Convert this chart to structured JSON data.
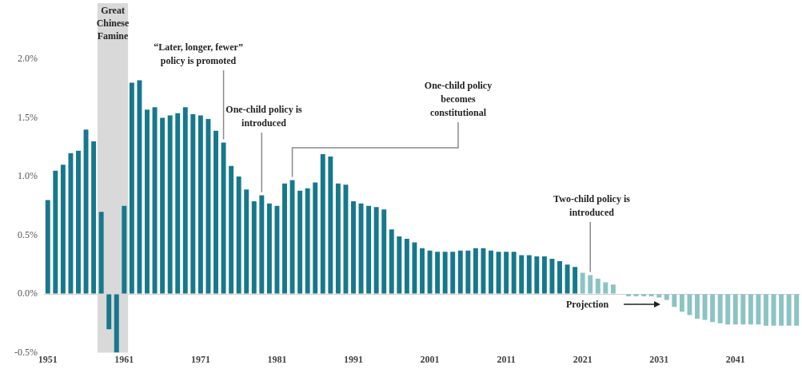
{
  "chart_data": {
    "type": "bar",
    "series": [
      {
        "color": "#17788c",
        "x": [
          1951,
          1952,
          1953,
          1954,
          1955,
          1956,
          1957,
          1958,
          1959,
          1960,
          1961,
          1962,
          1963,
          1964,
          1965,
          1966,
          1967,
          1968,
          1969,
          1970,
          1971,
          1972,
          1973,
          1974,
          1975,
          1976,
          1977,
          1978,
          1979,
          1980,
          1981,
          1982,
          1983,
          1984,
          1985,
          1986,
          1987,
          1988,
          1989,
          1990,
          1991,
          1992,
          1993,
          1994,
          1995,
          1996,
          1997,
          1998,
          1999,
          2000,
          2001,
          2002,
          2003,
          2004,
          2005,
          2006,
          2007,
          2008,
          2009,
          2010,
          2011,
          2012,
          2013,
          2014,
          2015,
          2016,
          2017,
          2018,
          2019,
          2020
        ],
        "values": [
          0.8,
          1.05,
          1.1,
          1.2,
          1.22,
          1.4,
          1.3,
          0.7,
          -0.3,
          -0.5,
          0.75,
          1.8,
          1.82,
          1.57,
          1.59,
          1.5,
          1.52,
          1.54,
          1.59,
          1.53,
          1.52,
          1.49,
          1.39,
          1.29,
          1.09,
          1.0,
          0.89,
          0.79,
          0.84,
          0.77,
          0.75,
          0.94,
          0.97,
          0.88,
          0.9,
          0.95,
          1.19,
          1.17,
          0.94,
          0.93,
          0.79,
          0.77,
          0.75,
          0.74,
          0.72,
          0.55,
          0.49,
          0.47,
          0.44,
          0.39,
          0.37,
          0.36,
          0.36,
          0.36,
          0.37,
          0.37,
          0.39,
          0.39,
          0.37,
          0.36,
          0.36,
          0.36,
          0.33,
          0.33,
          0.32,
          0.32,
          0.3,
          0.28,
          0.25,
          0.23
        ]
      },
      {
        "color": "#8cc3c3",
        "x": [
          2021,
          2022,
          2023,
          2024,
          2025,
          2026,
          2027,
          2028,
          2029,
          2030,
          2031,
          2032,
          2033,
          2034,
          2035,
          2036,
          2037,
          2038,
          2039,
          2040,
          2041,
          2042,
          2043,
          2044,
          2045,
          2046,
          2047,
          2048,
          2049
        ],
        "values": [
          0.18,
          0.16,
          0.13,
          0.1,
          0.08,
          0,
          -0.02,
          -0.02,
          -0.02,
          -0.02,
          -0.03,
          -0.05,
          -0.11,
          -0.15,
          -0.18,
          -0.21,
          -0.22,
          -0.24,
          -0.25,
          -0.26,
          -0.26,
          -0.26,
          -0.26,
          -0.26,
          -0.27,
          -0.27,
          -0.27,
          -0.27,
          -0.27
        ]
      }
    ],
    "xlim": [
      1950.5,
      2049.5
    ],
    "xticks": [
      1951,
      1961,
      1971,
      1981,
      1991,
      2001,
      2011,
      2021,
      2031,
      2041
    ],
    "ylim": [
      -0.5,
      2.0
    ],
    "yticks": [
      {
        "value": -0.5,
        "label": "-0.5%"
      },
      {
        "value": 0,
        "label": "0.0%"
      },
      {
        "value": 0.5,
        "label": "0.5%"
      },
      {
        "value": 1,
        "label": "1.0%"
      },
      {
        "value": 1.5,
        "label": "1.5%"
      },
      {
        "value": 2,
        "label": "2.0%"
      }
    ],
    "bands": [
      {
        "axis": "x",
        "from": 1957.5,
        "to": 1961.5,
        "label": "Great Chinese Famine",
        "color": "#d9d9d9"
      }
    ],
    "annotations": [
      {
        "text": "“Later, longer, fewer” policy is promoted",
        "x": 1974,
        "y": 1.29
      },
      {
        "text": "One-child policy is introduced",
        "x": 1979,
        "y": 0.84
      },
      {
        "text": "One-child policy becomes constitutional",
        "x": 1983,
        "y": 0.97
      },
      {
        "text": "Two-child policy is introduced",
        "x": 2022,
        "y": 0.16
      },
      "Projection"
    ]
  }
}
